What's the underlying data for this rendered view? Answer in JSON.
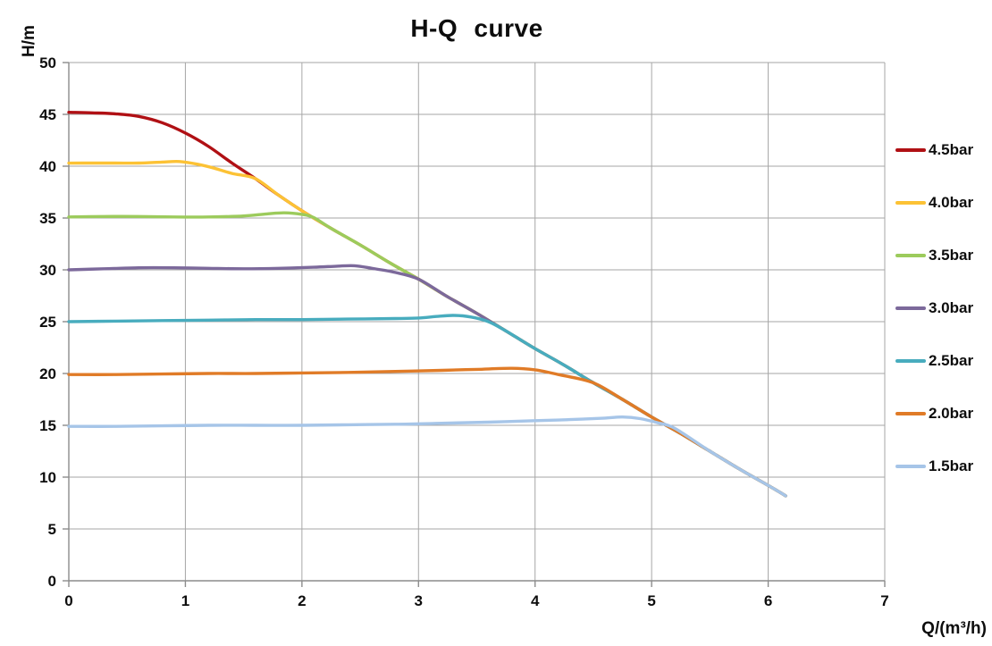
{
  "chart_data": {
    "type": "line",
    "title": "H-Q curve",
    "xlabel": "Q/(m³/h)",
    "ylabel": "H/m",
    "xlim": [
      0,
      7
    ],
    "ylim": [
      0,
      50
    ],
    "x_ticks": [
      0,
      1,
      2,
      3,
      4,
      5,
      6,
      7
    ],
    "y_ticks": [
      0,
      5,
      10,
      15,
      20,
      25,
      30,
      35,
      40,
      45,
      50
    ],
    "grid": true,
    "legend_position": "right",
    "grid_color": "#a6a6a6",
    "axis_color": "#8c8c8c",
    "series": [
      {
        "name": "4.5bar",
        "color": "#b01014",
        "points": [
          [
            0,
            45.2
          ],
          [
            0.2,
            45.15
          ],
          [
            0.4,
            45.05
          ],
          [
            0.6,
            44.8
          ],
          [
            0.8,
            44.2
          ],
          [
            1,
            43.2
          ],
          [
            1.2,
            41.9
          ],
          [
            1.4,
            40.3
          ],
          [
            1.6,
            38.8
          ],
          [
            1.8,
            37.2
          ],
          [
            2,
            35.7
          ],
          [
            2.25,
            34
          ],
          [
            2.5,
            32.4
          ],
          [
            2.75,
            30.7
          ],
          [
            3,
            29.1
          ],
          [
            3.25,
            27.4
          ],
          [
            3.5,
            25.8
          ],
          [
            3.75,
            24.1
          ],
          [
            4,
            22.4
          ],
          [
            4.25,
            20.8
          ],
          [
            4.5,
            19.1
          ],
          [
            4.75,
            17.5
          ],
          [
            5,
            15.8
          ],
          [
            5.25,
            14.2
          ],
          [
            5.5,
            12.5
          ],
          [
            5.75,
            10.8
          ],
          [
            6,
            9.2
          ],
          [
            6.15,
            8.2
          ]
        ]
      },
      {
        "name": "4.0bar",
        "color": "#fcc235",
        "points": [
          [
            0,
            40.3
          ],
          [
            0.2,
            40.3
          ],
          [
            0.4,
            40.3
          ],
          [
            0.6,
            40.3
          ],
          [
            0.8,
            40.4
          ],
          [
            0.95,
            40.45
          ],
          [
            1.1,
            40.2
          ],
          [
            1.25,
            39.8
          ],
          [
            1.4,
            39.3
          ],
          [
            1.6,
            38.8
          ],
          [
            1.8,
            37.2
          ],
          [
            2,
            35.7
          ],
          [
            2.25,
            34
          ],
          [
            2.5,
            32.4
          ],
          [
            2.75,
            30.7
          ],
          [
            3,
            29.1
          ],
          [
            3.25,
            27.4
          ],
          [
            3.5,
            25.8
          ],
          [
            3.75,
            24.1
          ],
          [
            4,
            22.4
          ],
          [
            4.25,
            20.8
          ],
          [
            4.5,
            19.1
          ],
          [
            4.75,
            17.5
          ],
          [
            5,
            15.8
          ],
          [
            5.25,
            14.2
          ],
          [
            5.5,
            12.5
          ],
          [
            5.75,
            10.8
          ],
          [
            6,
            9.2
          ],
          [
            6.15,
            8.2
          ]
        ]
      },
      {
        "name": "3.5bar",
        "color": "#9ccb5c",
        "points": [
          [
            0,
            35.1
          ],
          [
            0.3,
            35.15
          ],
          [
            0.6,
            35.15
          ],
          [
            0.9,
            35.1
          ],
          [
            1.2,
            35.1
          ],
          [
            1.5,
            35.2
          ],
          [
            1.7,
            35.4
          ],
          [
            1.85,
            35.5
          ],
          [
            2,
            35.35
          ],
          [
            2.1,
            35.05
          ],
          [
            2.25,
            34
          ],
          [
            2.5,
            32.4
          ],
          [
            2.75,
            30.7
          ],
          [
            3,
            29.1
          ],
          [
            3.25,
            27.4
          ],
          [
            3.5,
            25.8
          ],
          [
            3.75,
            24.1
          ],
          [
            4,
            22.4
          ],
          [
            4.25,
            20.8
          ],
          [
            4.5,
            19.1
          ],
          [
            4.75,
            17.5
          ],
          [
            5,
            15.8
          ],
          [
            5.25,
            14.2
          ],
          [
            5.5,
            12.5
          ],
          [
            5.75,
            10.8
          ],
          [
            6,
            9.2
          ],
          [
            6.15,
            8.2
          ]
        ]
      },
      {
        "name": "3.0bar",
        "color": "#7c699b",
        "points": [
          [
            0,
            30
          ],
          [
            0.3,
            30.1
          ],
          [
            0.6,
            30.2
          ],
          [
            0.9,
            30.2
          ],
          [
            1.2,
            30.15
          ],
          [
            1.5,
            30.1
          ],
          [
            1.8,
            30.15
          ],
          [
            2.1,
            30.25
          ],
          [
            2.3,
            30.35
          ],
          [
            2.45,
            30.4
          ],
          [
            2.6,
            30.15
          ],
          [
            2.8,
            29.75
          ],
          [
            3,
            29.1
          ],
          [
            3.25,
            27.4
          ],
          [
            3.5,
            25.8
          ],
          [
            3.75,
            24.1
          ],
          [
            4,
            22.4
          ],
          [
            4.25,
            20.8
          ],
          [
            4.5,
            19.1
          ],
          [
            4.75,
            17.5
          ],
          [
            5,
            15.8
          ],
          [
            5.25,
            14.2
          ],
          [
            5.5,
            12.5
          ],
          [
            5.75,
            10.8
          ],
          [
            6,
            9.2
          ],
          [
            6.15,
            8.2
          ]
        ]
      },
      {
        "name": "2.5bar",
        "color": "#48acbe",
        "points": [
          [
            0,
            25
          ],
          [
            0.4,
            25.05
          ],
          [
            0.8,
            25.1
          ],
          [
            1.2,
            25.15
          ],
          [
            1.6,
            25.2
          ],
          [
            2,
            25.2
          ],
          [
            2.4,
            25.25
          ],
          [
            2.8,
            25.3
          ],
          [
            3,
            25.35
          ],
          [
            3.15,
            25.5
          ],
          [
            3.3,
            25.6
          ],
          [
            3.45,
            25.45
          ],
          [
            3.6,
            25
          ],
          [
            3.75,
            24.1
          ],
          [
            4,
            22.4
          ],
          [
            4.25,
            20.8
          ],
          [
            4.5,
            19.1
          ],
          [
            4.75,
            17.5
          ],
          [
            5,
            15.8
          ],
          [
            5.25,
            14.2
          ],
          [
            5.5,
            12.5
          ],
          [
            5.75,
            10.8
          ],
          [
            6,
            9.2
          ],
          [
            6.15,
            8.2
          ]
        ]
      },
      {
        "name": "2.0bar",
        "color": "#e07b27",
        "points": [
          [
            0,
            19.9
          ],
          [
            0.4,
            19.9
          ],
          [
            0.8,
            19.95
          ],
          [
            1.2,
            20
          ],
          [
            1.6,
            20
          ],
          [
            2,
            20.05
          ],
          [
            2.4,
            20.1
          ],
          [
            2.8,
            20.2
          ],
          [
            3.2,
            20.3
          ],
          [
            3.5,
            20.4
          ],
          [
            3.8,
            20.5
          ],
          [
            4,
            20.35
          ],
          [
            4.2,
            19.9
          ],
          [
            4.5,
            19.1
          ],
          [
            4.75,
            17.5
          ],
          [
            5,
            15.8
          ],
          [
            5.25,
            14.2
          ],
          [
            5.5,
            12.5
          ],
          [
            5.75,
            10.8
          ],
          [
            6,
            9.2
          ],
          [
            6.15,
            8.2
          ]
        ]
      },
      {
        "name": "1.5bar",
        "color": "#a6c5e8",
        "points": [
          [
            0,
            14.9
          ],
          [
            0.4,
            14.9
          ],
          [
            0.8,
            14.95
          ],
          [
            1.2,
            15
          ],
          [
            1.6,
            15
          ],
          [
            2,
            15
          ],
          [
            2.4,
            15.05
          ],
          [
            2.8,
            15.1
          ],
          [
            3.2,
            15.2
          ],
          [
            3.6,
            15.3
          ],
          [
            4,
            15.45
          ],
          [
            4.3,
            15.55
          ],
          [
            4.6,
            15.7
          ],
          [
            4.75,
            15.8
          ],
          [
            4.9,
            15.65
          ],
          [
            5.05,
            15.25
          ],
          [
            5.2,
            14.7
          ],
          [
            5.5,
            12.5
          ],
          [
            5.75,
            10.8
          ],
          [
            6,
            9.2
          ],
          [
            6.15,
            8.2
          ]
        ]
      }
    ]
  }
}
